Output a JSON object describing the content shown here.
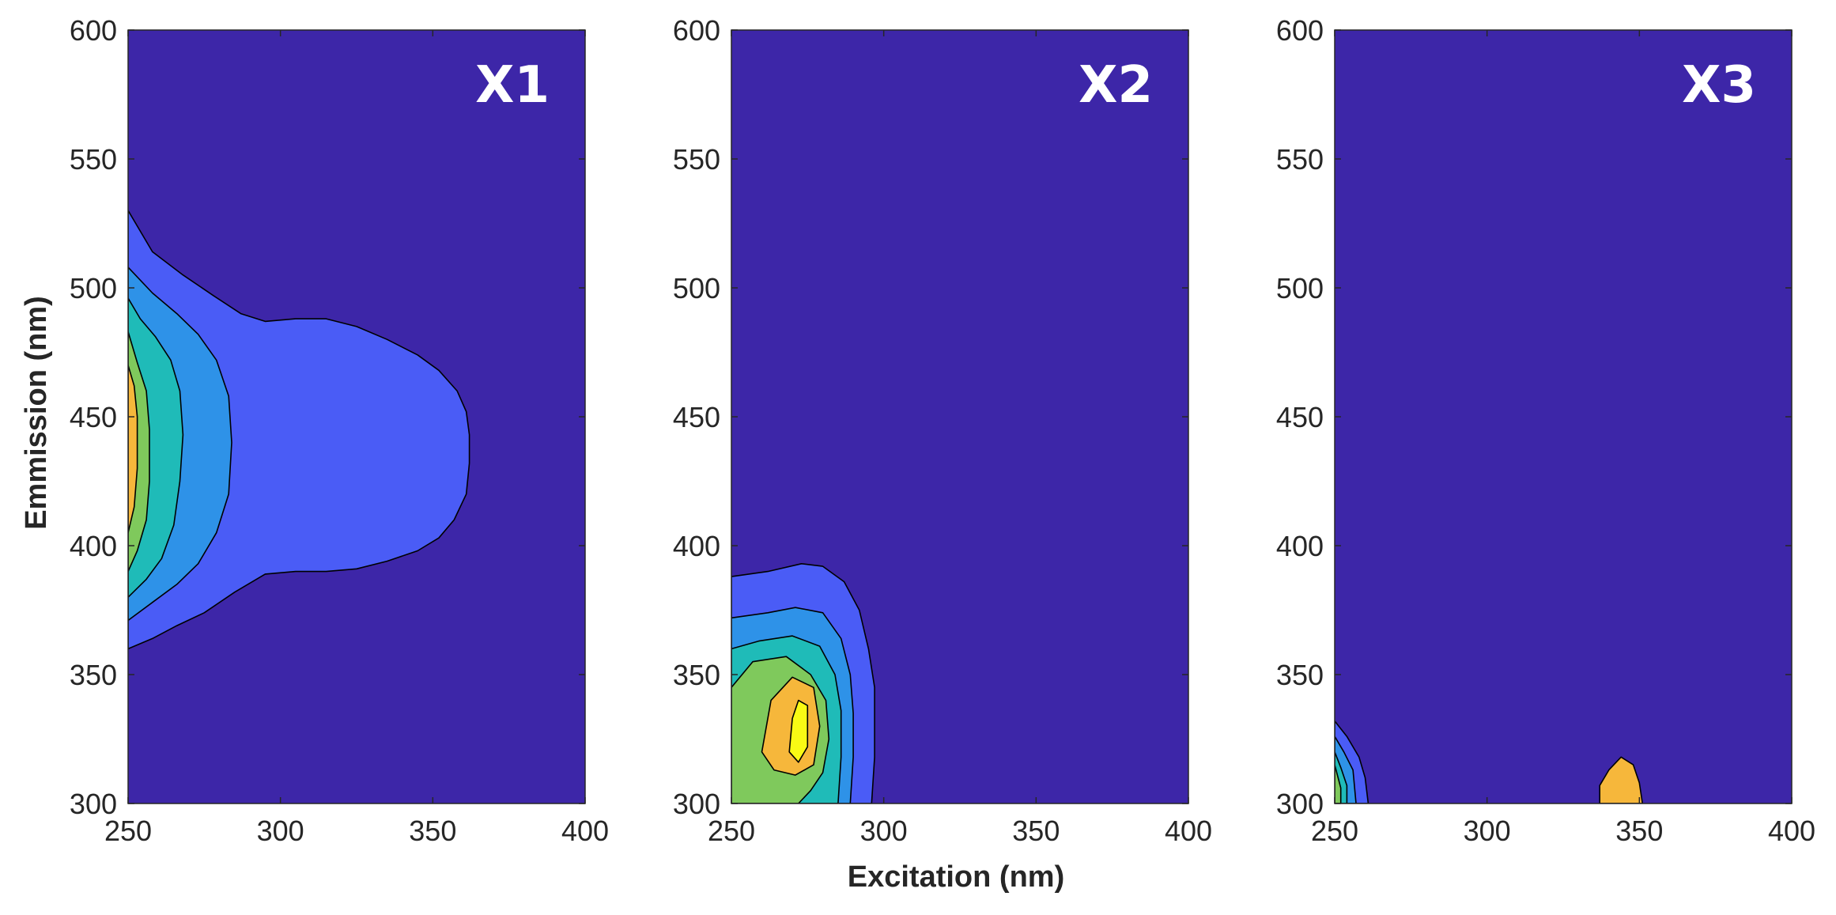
{
  "chart_data": {
    "type": "contour",
    "xlabel": "Excitation (nm)",
    "ylabel": "Emmission (nm)",
    "xlim": [
      250,
      400
    ],
    "ylim": [
      300,
      600
    ],
    "xticks": [
      250,
      300,
      350,
      400
    ],
    "yticks": [
      300,
      350,
      400,
      450,
      500,
      550,
      600
    ],
    "xtick_labels": [
      "250",
      "300",
      "350",
      "400"
    ],
    "ytick_labels": [
      "300",
      "350",
      "400",
      "450",
      "500",
      "550",
      "600"
    ],
    "colormap": [
      "#3d26a8",
      "#4a5cf6",
      "#2e92e8",
      "#1fbbb8",
      "#7fc95c",
      "#f6b73b",
      "#f9fa14"
    ],
    "panels": [
      {
        "title": "X1",
        "levels": [
          [
            [
              250,
              360
            ],
            [
              258,
              364
            ],
            [
              266,
              369
            ],
            [
              275,
              374
            ],
            [
              285,
              382
            ],
            [
              295,
              389
            ],
            [
              305,
              390
            ],
            [
              315,
              390
            ],
            [
              325,
              391
            ],
            [
              335,
              394
            ],
            [
              345,
              398
            ],
            [
              352,
              403
            ],
            [
              357,
              410
            ],
            [
              361,
              420
            ],
            [
              362,
              432
            ],
            [
              362,
              443
            ],
            [
              361,
              452
            ],
            [
              358,
              460
            ],
            [
              352,
              468
            ],
            [
              345,
              474
            ],
            [
              335,
              480
            ],
            [
              325,
              485
            ],
            [
              315,
              488
            ],
            [
              305,
              488
            ],
            [
              295,
              487
            ],
            [
              287,
              490
            ],
            [
              278,
              497
            ],
            [
              268,
              505
            ],
            [
              258,
              514
            ],
            [
              250,
              530
            ]
          ],
          [
            [
              250,
              371
            ],
            [
              258,
              378
            ],
            [
              266,
              385
            ],
            [
              273,
              393
            ],
            [
              279,
              405
            ],
            [
              283,
              420
            ],
            [
              284,
              440
            ],
            [
              283,
              458
            ],
            [
              279,
              472
            ],
            [
              273,
              482
            ],
            [
              266,
              490
            ],
            [
              258,
              498
            ],
            [
              250,
              508
            ]
          ],
          [
            [
              250,
              380
            ],
            [
              256,
              387
            ],
            [
              261,
              395
            ],
            [
              265,
              408
            ],
            [
              267,
              425
            ],
            [
              268,
              443
            ],
            [
              267,
              460
            ],
            [
              264,
              472
            ],
            [
              259,
              481
            ],
            [
              254,
              488
            ],
            [
              250,
              496
            ]
          ],
          [
            [
              250,
              390
            ],
            [
              253,
              398
            ],
            [
              256,
              410
            ],
            [
              257,
              425
            ],
            [
              257,
              445
            ],
            [
              256,
              460
            ],
            [
              253,
              471
            ],
            [
              250,
              483
            ]
          ],
          [
            [
              250,
              405
            ],
            [
              252,
              415
            ],
            [
              253,
              430
            ],
            [
              253,
              450
            ],
            [
              252,
              462
            ],
            [
              250,
              470
            ]
          ]
        ]
      },
      {
        "title": "X2",
        "levels": [
          [
            [
              250,
              300
            ],
            [
              250,
              388
            ],
            [
              262,
              390
            ],
            [
              273,
              393
            ],
            [
              280,
              392
            ],
            [
              287,
              386
            ],
            [
              292,
              375
            ],
            [
              295,
              360
            ],
            [
              297,
              345
            ],
            [
              297,
              330
            ],
            [
              297,
              318
            ],
            [
              296,
              300
            ]
          ],
          [
            [
              250,
              300
            ],
            [
              250,
              372
            ],
            [
              262,
              374
            ],
            [
              271,
              376
            ],
            [
              280,
              374
            ],
            [
              286,
              364
            ],
            [
              289,
              350
            ],
            [
              290,
              335
            ],
            [
              290,
              318
            ],
            [
              289,
              300
            ]
          ],
          [
            [
              250,
              300
            ],
            [
              250,
              360
            ],
            [
              259,
              363
            ],
            [
              270,
              365
            ],
            [
              279,
              361
            ],
            [
              284,
              350
            ],
            [
              286,
              336
            ],
            [
              286,
              318
            ],
            [
              285,
              300
            ]
          ],
          [
            [
              250,
              300
            ],
            [
              250,
              345
            ],
            [
              257,
              355
            ],
            [
              268,
              357
            ],
            [
              276,
              350
            ],
            [
              281,
              340
            ],
            [
              282,
              325
            ],
            [
              280,
              312
            ],
            [
              276,
              305
            ],
            [
              272,
              300
            ]
          ],
          [
            [
              260,
              320
            ],
            [
              263,
              340
            ],
            [
              270,
              349
            ],
            [
              277,
              345
            ],
            [
              279,
              330
            ],
            [
              277,
              315
            ],
            [
              271,
              311
            ],
            [
              264,
              313
            ]
          ],
          [
            [
              269,
              320
            ],
            [
              270,
              333
            ],
            [
              272,
              340
            ],
            [
              275,
              338
            ],
            [
              275,
              322
            ],
            [
              272,
              316
            ]
          ]
        ]
      },
      {
        "title": "X3",
        "levels": [
          [
            [
              250,
              300
            ],
            [
              250,
              332
            ],
            [
              254,
              326
            ],
            [
              258,
              318
            ],
            [
              260,
              310
            ],
            [
              261,
              300
            ]
          ],
          [
            [
              250,
              300
            ],
            [
              250,
              326
            ],
            [
              253,
              320
            ],
            [
              256,
              313
            ],
            [
              257,
              300
            ]
          ],
          [
            [
              250,
              300
            ],
            [
              250,
              320
            ],
            [
              252,
              314
            ],
            [
              254,
              307
            ],
            [
              254,
              300
            ]
          ],
          [
            [
              250,
              300
            ],
            [
              250,
              315
            ],
            [
              252,
              306
            ],
            [
              252,
              300
            ]
          ],
          [
            [
              337,
              300
            ],
            [
              337,
              307
            ],
            [
              340,
              313
            ],
            [
              344,
              318
            ],
            [
              348,
              315
            ],
            [
              350,
              308
            ],
            [
              351,
              300
            ]
          ]
        ]
      }
    ]
  }
}
